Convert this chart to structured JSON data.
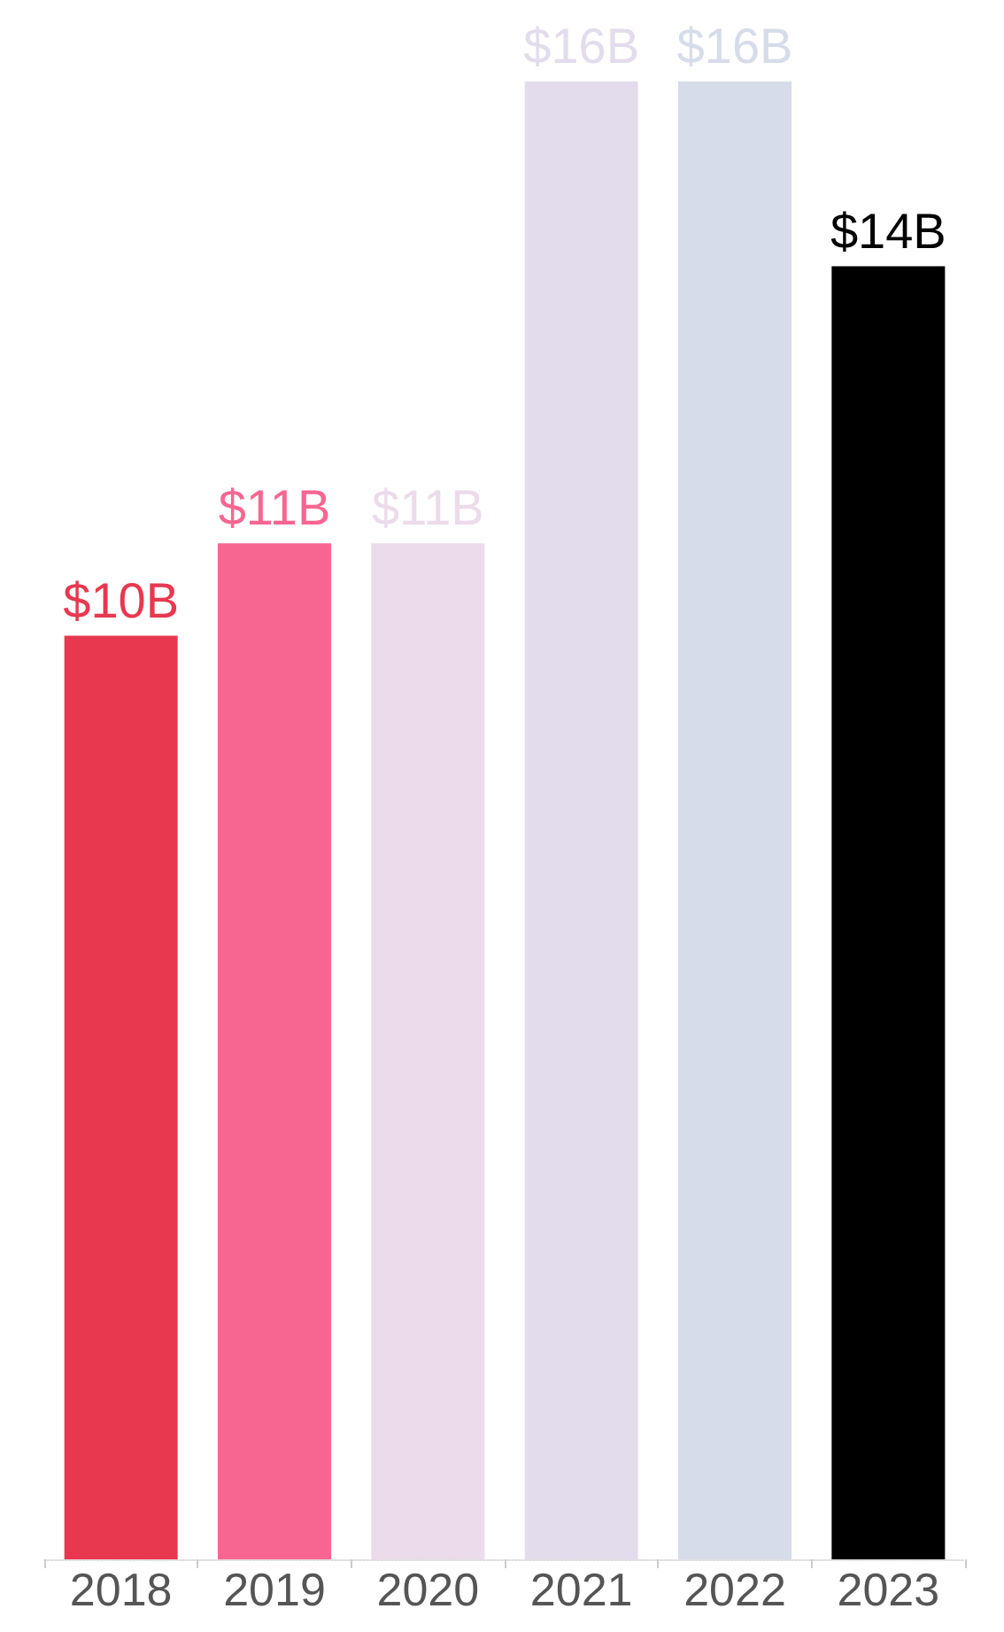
{
  "chart_data": {
    "type": "bar",
    "categories": [
      "2018",
      "2019",
      "2020",
      "2021",
      "2022",
      "2023"
    ],
    "values": [
      10,
      11,
      11,
      16,
      16,
      14
    ],
    "value_labels": [
      "$10B",
      "$11B",
      "$11B",
      "$16B",
      "$16B",
      "$14B"
    ],
    "colors": [
      "#e8384f",
      "#f76691",
      "#ecdbea",
      "#e3dced",
      "#d6dce9",
      "#000000"
    ]
  }
}
